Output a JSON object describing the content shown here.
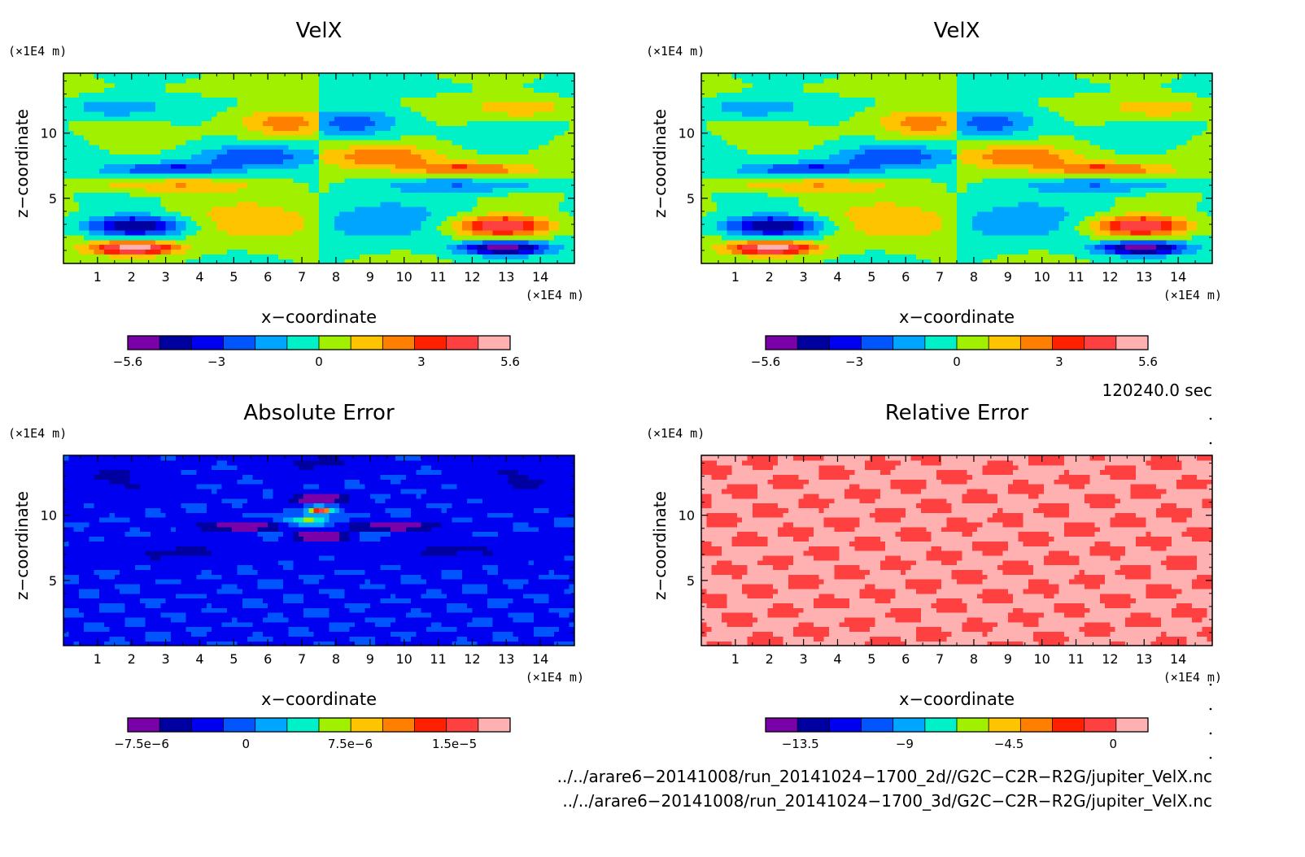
{
  "chart_data": [
    {
      "type": "heatmap",
      "title": "VelX",
      "xlabel": "x−coordinate",
      "ylabel": "z−coordinate",
      "x_unit": "(×1E4 m)",
      "y_unit": "(×1E4 m)",
      "x_ticks": [
        "1",
        "2",
        "3",
        "4",
        "5",
        "6",
        "7",
        "8",
        "9",
        "10",
        "11",
        "12",
        "13",
        "14"
      ],
      "y_ticks": [
        "5",
        "10"
      ],
      "xlim": [
        0,
        15
      ],
      "ylim": [
        0,
        14.6
      ],
      "field": "velx",
      "colorbar": {
        "min": -5.6,
        "max": 5.6,
        "tick_values": [
          -5.6,
          -3,
          0,
          3,
          5.6
        ],
        "tick_labels": [
          "−5.6",
          "−3",
          "0",
          "3",
          "5.6"
        ]
      }
    },
    {
      "type": "heatmap",
      "title": "VelX",
      "xlabel": "x−coordinate",
      "ylabel": "z−coordinate",
      "x_unit": "(×1E4 m)",
      "y_unit": "(×1E4 m)",
      "x_ticks": [
        "1",
        "2",
        "3",
        "4",
        "5",
        "6",
        "7",
        "8",
        "9",
        "10",
        "11",
        "12",
        "13",
        "14"
      ],
      "y_ticks": [
        "5",
        "10"
      ],
      "xlim": [
        0,
        15
      ],
      "ylim": [
        0,
        14.6
      ],
      "field": "velx",
      "colorbar": {
        "min": -5.6,
        "max": 5.6,
        "tick_values": [
          -5.6,
          -3,
          0,
          3,
          5.6
        ],
        "tick_labels": [
          "−5.6",
          "−3",
          "0",
          "3",
          "5.6"
        ]
      }
    },
    {
      "type": "heatmap",
      "title": "Absolute Error",
      "xlabel": "x−coordinate",
      "ylabel": "z−coordinate",
      "x_unit": "(×1E4 m)",
      "y_unit": "(×1E4 m)",
      "x_ticks": [
        "1",
        "2",
        "3",
        "4",
        "5",
        "6",
        "7",
        "8",
        "9",
        "10",
        "11",
        "12",
        "13",
        "14"
      ],
      "y_ticks": [
        "5",
        "10"
      ],
      "xlim": [
        0,
        15
      ],
      "ylim": [
        0,
        14.6
      ],
      "field": "abs_error",
      "colorbar": {
        "min": -8.5e-06,
        "max": 1.9e-05,
        "tick_values": [
          -7.5e-06,
          0,
          7.5e-06,
          1.5e-05
        ],
        "tick_labels": [
          "−7.5e−6",
          "0",
          "7.5e−6",
          "1.5e−5"
        ]
      }
    },
    {
      "type": "heatmap",
      "title": "Relative Error",
      "xlabel": "x−coordinate",
      "ylabel": "z−coordinate",
      "x_unit": "(×1E4 m)",
      "y_unit": "(×1E4 m)",
      "x_ticks": [
        "1",
        "2",
        "3",
        "4",
        "5",
        "6",
        "7",
        "8",
        "9",
        "10",
        "11",
        "12",
        "13",
        "14"
      ],
      "y_ticks": [
        "5",
        "10"
      ],
      "xlim": [
        0,
        15
      ],
      "ylim": [
        0,
        14.6
      ],
      "field": "rel_error",
      "colorbar": {
        "min": -15,
        "max": 1.5,
        "tick_values": [
          -13.5,
          -9,
          -4.5,
          0
        ],
        "tick_labels": [
          "−13.5",
          "−9",
          "−4.5",
          "0"
        ]
      }
    }
  ],
  "colormap": [
    "#7a00a8",
    "#0000a0",
    "#0000f0",
    "#0055ff",
    "#00a5ff",
    "#00f0c8",
    "#a0f000",
    "#ffc400",
    "#ff8000",
    "#ff2000",
    "#ff4040",
    "#ffb0b0"
  ],
  "time_label": "120240.0 sec",
  "files": [
    "../../arare6−20141008/run_20141024−1700_2d//G2C−C2R−R2G/jupiter_VelX.nc",
    "../../arare6−20141008/run_20141024−1700_3d/G2C−C2R−R2G/jupiter_VelX.nc"
  ]
}
